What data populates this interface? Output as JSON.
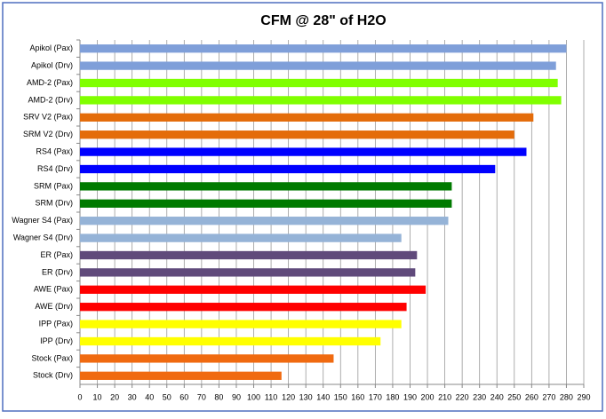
{
  "chart_data": {
    "type": "barh",
    "title": "CFM @ 28\" of H2O",
    "categories": [
      "Apikol (Pax)",
      "Apikol (Drv)",
      "AMD-2 (Pax)",
      "AMD-2 (Drv)",
      "SRV V2 (Pax)",
      "SRM V2 (Drv)",
      "RS4 (Pax)",
      "RS4 (Drv)",
      "SRM (Pax)",
      "SRM (Drv)",
      "Wagner S4 (Pax)",
      "Wagner S4 (Drv)",
      "ER (Pax)",
      "ER (Drv)",
      "AWE (Pax)",
      "AWE (Drv)",
      "IPP (Pax)",
      "IPP (Drv)",
      "Stock (Pax)",
      "Stock (Drv)"
    ],
    "values": [
      280,
      274,
      275,
      277,
      261,
      250,
      257,
      239,
      214,
      214,
      212,
      185,
      194,
      193,
      199,
      188,
      185,
      173,
      146,
      116
    ],
    "colors": [
      "#7f9fd9",
      "#7f9fd9",
      "#80ff00",
      "#80ff00",
      "#e46c0a",
      "#e46c0a",
      "#0000ff",
      "#0000ff",
      "#007a00",
      "#007a00",
      "#95b3d7",
      "#95b3d7",
      "#604a7b",
      "#604a7b",
      "#ff0000",
      "#ff0000",
      "#ffff00",
      "#ffff00",
      "#f06a10",
      "#f06a10"
    ],
    "xlim": [
      0,
      290
    ],
    "xticks": [
      0,
      10,
      20,
      30,
      40,
      50,
      60,
      70,
      80,
      90,
      100,
      110,
      120,
      130,
      140,
      150,
      160,
      170,
      180,
      190,
      200,
      210,
      220,
      230,
      240,
      250,
      260,
      270,
      280,
      290
    ],
    "grid": true
  }
}
